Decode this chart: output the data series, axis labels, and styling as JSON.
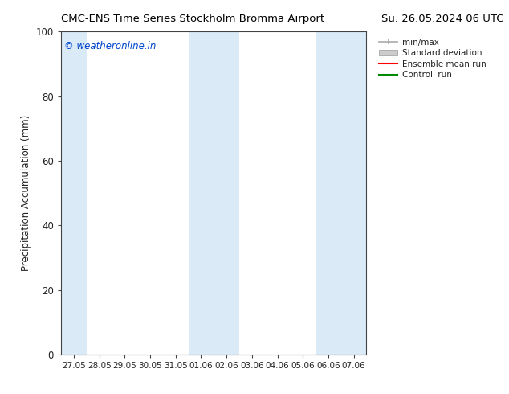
{
  "title_left": "CMC-ENS Time Series Stockholm Bromma Airport",
  "title_right": "Su. 26.05.2024 06 UTC",
  "ylabel": "Precipitation Accumulation (mm)",
  "ylim": [
    0,
    100
  ],
  "yticks": [
    0,
    20,
    40,
    60,
    80,
    100
  ],
  "x_tick_labels": [
    "27.05",
    "28.05",
    "29.05",
    "30.05",
    "31.05",
    "01.06",
    "02.06",
    "03.06",
    "04.06",
    "05.06",
    "06.06",
    "07.06"
  ],
  "watermark": "© weatheronline.in",
  "watermark_color": "#0044cc",
  "background_color": "#ffffff",
  "shaded_band_color": "#daeaf7",
  "legend_entries": [
    "min/max",
    "Standard deviation",
    "Ensemble mean run",
    "Controll run"
  ],
  "legend_line_colors": [
    "#aaaaaa",
    "#bbbbbb",
    "#ff0000",
    "#008800"
  ],
  "n_ticks": 12,
  "shaded_ranges": [
    [
      0,
      1
    ],
    [
      5,
      7
    ],
    [
      10,
      12
    ]
  ]
}
